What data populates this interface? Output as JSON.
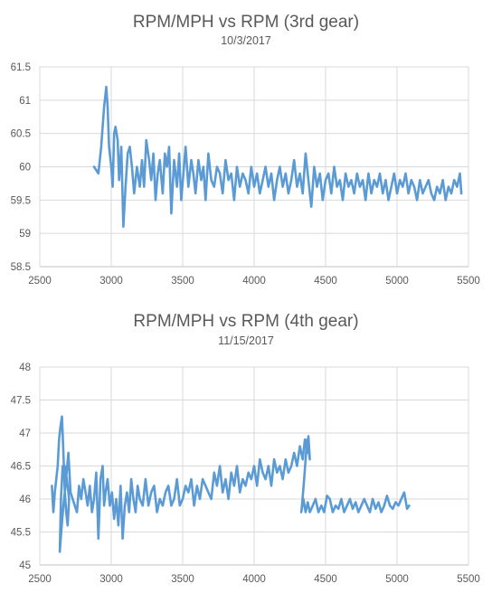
{
  "chart_data": [
    {
      "type": "line",
      "title": "RPM/MPH vs RPM (3rd gear)",
      "subtitle": "10/3/2017",
      "xlim": [
        2500,
        5500
      ],
      "ylim": [
        58.5,
        61.5
      ],
      "x_ticks": [
        2500,
        3000,
        3500,
        4000,
        4500,
        5000,
        5500
      ],
      "y_ticks": [
        58.5,
        59,
        59.5,
        60,
        60.5,
        61,
        61.5
      ],
      "x_tick_labels": [
        "2500",
        "3000",
        "3500",
        "4000",
        "4500",
        "5000",
        "5500"
      ],
      "y_tick_labels": [
        "58.5",
        "59",
        "59.5",
        "60",
        "60.5",
        "61",
        "61.5"
      ],
      "grid": true,
      "color": "#5B9BD5",
      "x": [
        2880,
        2910,
        2930,
        2950,
        2965,
        2975,
        2985,
        3000,
        3010,
        3020,
        3030,
        3045,
        3055,
        3070,
        3085,
        3100,
        3115,
        3130,
        3145,
        3160,
        3180,
        3200,
        3215,
        3230,
        3245,
        3265,
        3280,
        3295,
        3310,
        3325,
        3340,
        3360,
        3375,
        3390,
        3405,
        3420,
        3440,
        3460,
        3475,
        3490,
        3505,
        3520,
        3540,
        3560,
        3575,
        3590,
        3610,
        3630,
        3645,
        3660,
        3680,
        3700,
        3720,
        3740,
        3760,
        3780,
        3800,
        3820,
        3840,
        3860,
        3880,
        3900,
        3920,
        3940,
        3960,
        3980,
        4000,
        4020,
        4040,
        4060,
        4080,
        4100,
        4120,
        4140,
        4160,
        4180,
        4200,
        4220,
        4240,
        4260,
        4280,
        4300,
        4320,
        4340,
        4360,
        4380,
        4400,
        4420,
        4440,
        4460,
        4480,
        4500,
        4520,
        4540,
        4560,
        4580,
        4600,
        4620,
        4640,
        4660,
        4680,
        4700,
        4720,
        4740,
        4760,
        4780,
        4800,
        4820,
        4840,
        4860,
        4880,
        4900,
        4920,
        4940,
        4960,
        4980,
        5000,
        5020,
        5040,
        5060,
        5080,
        5100,
        5120,
        5140,
        5160,
        5180,
        5200,
        5220,
        5240,
        5260,
        5280,
        5300,
        5320,
        5340,
        5360,
        5380,
        5400,
        5420,
        5440,
        5450
      ],
      "y": [
        60.0,
        59.9,
        60.3,
        60.9,
        61.2,
        60.9,
        60.3,
        60.0,
        59.7,
        60.5,
        60.6,
        60.4,
        59.8,
        60.3,
        59.1,
        59.7,
        60.2,
        60.3,
        60.0,
        59.6,
        60.0,
        59.7,
        60.1,
        59.7,
        60.4,
        60.1,
        59.8,
        60.2,
        59.5,
        59.9,
        60.1,
        59.6,
        60.2,
        60.0,
        60.3,
        59.3,
        60.1,
        59.7,
        60.2,
        59.5,
        59.9,
        60.3,
        59.7,
        60.1,
        59.9,
        59.6,
        60.1,
        59.8,
        60.0,
        59.5,
        60.2,
        59.8,
        59.7,
        60.0,
        59.9,
        59.6,
        60.1,
        59.8,
        59.9,
        59.5,
        60.0,
        59.7,
        59.9,
        59.8,
        59.6,
        60.0,
        59.7,
        59.9,
        59.6,
        59.8,
        60.0,
        59.7,
        59.9,
        59.5,
        59.8,
        60.0,
        59.7,
        59.9,
        59.6,
        59.8,
        60.1,
        59.7,
        59.9,
        59.6,
        60.2,
        59.8,
        59.4,
        60.0,
        59.7,
        59.9,
        59.5,
        59.8,
        59.9,
        59.6,
        60.0,
        59.7,
        59.8,
        59.5,
        59.9,
        59.7,
        59.8,
        59.6,
        59.9,
        59.7,
        59.8,
        59.5,
        59.9,
        59.6,
        59.8,
        59.7,
        59.9,
        59.6,
        59.8,
        59.5,
        59.7,
        59.9,
        59.6,
        59.8,
        59.7,
        59.9,
        59.6,
        59.8,
        59.7,
        59.5,
        59.8,
        59.6,
        59.7,
        59.8,
        59.6,
        59.5,
        59.7,
        59.6,
        59.8,
        59.5,
        59.7,
        59.6,
        59.8,
        59.7,
        59.9,
        59.6
      ]
    },
    {
      "type": "line",
      "title": "RPM/MPH vs RPM (4th gear)",
      "subtitle": "11/15/2017",
      "xlim": [
        2500,
        5500
      ],
      "ylim": [
        45,
        48
      ],
      "x_ticks": [
        2500,
        3000,
        3500,
        4000,
        4500,
        5000,
        5500
      ],
      "y_ticks": [
        45,
        45.5,
        46,
        46.5,
        47,
        47.5,
        48
      ],
      "x_tick_labels": [
        "2500",
        "3000",
        "3500",
        "4000",
        "4500",
        "5000",
        "5500"
      ],
      "y_tick_labels": [
        "45",
        "45.5",
        "46",
        "46.5",
        "47",
        "47.5",
        "48"
      ],
      "grid": true,
      "color": "#5B9BD5",
      "x": [
        2585,
        2595,
        2605,
        2615,
        2625,
        2635,
        2645,
        2655,
        2665,
        2675,
        2685,
        2695,
        2705,
        2690,
        2675,
        2660,
        2648,
        2640,
        2650,
        2665,
        2680,
        2700,
        2715,
        2730,
        2745,
        2760,
        2775,
        2790,
        2805,
        2820,
        2835,
        2850,
        2865,
        2880,
        2895,
        2910,
        2925,
        2940,
        2950,
        2960,
        2975,
        2990,
        3005,
        3020,
        3035,
        3050,
        3065,
        3080,
        3095,
        3110,
        3125,
        3140,
        3155,
        3170,
        3185,
        3200,
        3220,
        3240,
        3260,
        3280,
        3300,
        3320,
        3340,
        3360,
        3380,
        3400,
        3420,
        3440,
        3460,
        3480,
        3500,
        3520,
        3540,
        3560,
        3580,
        3600,
        3620,
        3640,
        3660,
        3680,
        3700,
        3720,
        3740,
        3760,
        3780,
        3800,
        3820,
        3840,
        3860,
        3880,
        3900,
        3920,
        3940,
        3960,
        3980,
        4000,
        4020,
        4040,
        4060,
        4080,
        4100,
        4120,
        4140,
        4160,
        4180,
        4200,
        4220,
        4240,
        4260,
        4280,
        4300,
        4320,
        4340,
        4355,
        4370,
        4380,
        4390,
        4370,
        4350,
        4335,
        4330,
        4345,
        4360,
        4375,
        4390,
        4410,
        4430,
        4450,
        4470,
        4490,
        4510,
        4530,
        4550,
        4570,
        4590,
        4610,
        4630,
        4650,
        4670,
        4690,
        4710,
        4730,
        4750,
        4770,
        4790,
        4810,
        4830,
        4850,
        4870,
        4890,
        4910,
        4930,
        4950,
        4970,
        4990,
        5010,
        5030,
        5050,
        5070,
        5085
      ],
      "y": [
        46.2,
        45.8,
        46.1,
        46.3,
        46.5,
        46.9,
        47.1,
        47.25,
        46.7,
        46.1,
        45.8,
        45.6,
        46.0,
        46.3,
        46.5,
        46.5,
        46.0,
        45.2,
        45.5,
        45.9,
        46.2,
        46.7,
        46.1,
        46.0,
        45.9,
        45.8,
        46.2,
        46.0,
        46.3,
        46.1,
        45.9,
        46.2,
        45.8,
        46.0,
        46.4,
        45.4,
        46.3,
        46.5,
        45.9,
        46.1,
        46.3,
        45.9,
        46.1,
        45.7,
        46.0,
        45.6,
        46.2,
        45.4,
        45.9,
        46.1,
        45.8,
        46.3,
        46.0,
        45.8,
        46.2,
        46.0,
        45.9,
        46.3,
        45.9,
        46.1,
        46.2,
        45.8,
        46.0,
        45.9,
        46.1,
        46.2,
        45.9,
        46.0,
        46.3,
        45.9,
        46.0,
        46.2,
        46.1,
        46.3,
        45.9,
        46.2,
        46.0,
        46.3,
        46.2,
        46.1,
        46.0,
        46.4,
        46.2,
        46.5,
        46.1,
        46.3,
        46.0,
        46.4,
        46.2,
        46.5,
        46.1,
        46.3,
        46.2,
        46.4,
        46.3,
        46.5,
        46.2,
        46.6,
        46.4,
        46.3,
        46.5,
        46.2,
        46.6,
        46.4,
        46.5,
        46.3,
        46.6,
        46.4,
        46.5,
        46.7,
        46.5,
        46.8,
        46.6,
        46.9,
        46.7,
        46.95,
        46.6,
        46.9,
        46.3,
        45.9,
        45.8,
        46.0,
        45.8,
        45.95,
        45.8,
        45.9,
        46.0,
        45.8,
        45.9,
        45.8,
        46.05,
        46.0,
        45.8,
        45.9,
        45.85,
        46.0,
        45.8,
        45.9,
        46.0,
        45.85,
        45.95,
        45.8,
        45.9,
        46.0,
        45.9,
        45.8,
        46.0,
        45.85,
        45.95,
        45.8,
        45.9,
        46.05,
        45.9,
        45.85,
        45.95,
        45.9,
        46.0,
        46.1,
        45.85,
        45.9
      ]
    }
  ]
}
